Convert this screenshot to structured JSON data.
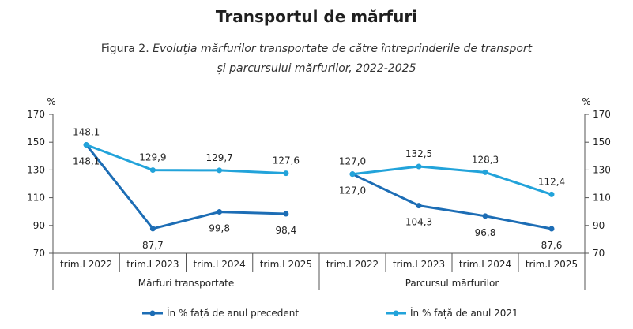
{
  "page": {
    "title": "Transportul de mărfuri",
    "figure_label": "Figura 2.",
    "figure_title_line1": "Evoluția mărfurilor transportate de către întreprinderile de transport",
    "figure_title_line2": "și parcursului mărfurilor, 2022-2025"
  },
  "chart_data": {
    "type": "line",
    "y_unit": "%",
    "ylim": [
      70,
      170
    ],
    "yticks": [
      70,
      90,
      110,
      130,
      150,
      170
    ],
    "grid": false,
    "legend_position": "bottom",
    "groups": [
      {
        "label": "Mărfuri transportate",
        "categories": [
          "trim.I 2022",
          "trim.I 2023",
          "trim.I 2024",
          "trim.I 2025"
        ],
        "series": [
          {
            "name": "În % față de anul precedent",
            "values": [
              148.1,
              87.7,
              99.8,
              98.4
            ],
            "labels": [
              "148,1",
              "87,7",
              "99,8",
              "98,4"
            ]
          },
          {
            "name": "În % față de anul 2021",
            "values": [
              148.1,
              129.9,
              129.7,
              127.6
            ],
            "labels": [
              "148,1",
              "129,9",
              "129,7",
              "127,6"
            ]
          }
        ]
      },
      {
        "label": "Parcursul mărfurilor",
        "categories": [
          "trim.I 2022",
          "trim.I 2023",
          "trim.I 2024",
          "trim.I 2025"
        ],
        "series": [
          {
            "name": "În % față de anul precedent",
            "values": [
              127.0,
              104.3,
              96.8,
              87.6
            ],
            "labels": [
              "127,0",
              "104,3",
              "96,8",
              "87,6"
            ]
          },
          {
            "name": "În % față de anul 2021",
            "values": [
              127.0,
              132.5,
              128.3,
              112.4
            ],
            "labels": [
              "127,0",
              "132,5",
              "128,3",
              "112,4"
            ]
          }
        ]
      }
    ],
    "colors": [
      "#1c6db5",
      "#22a3da"
    ]
  }
}
